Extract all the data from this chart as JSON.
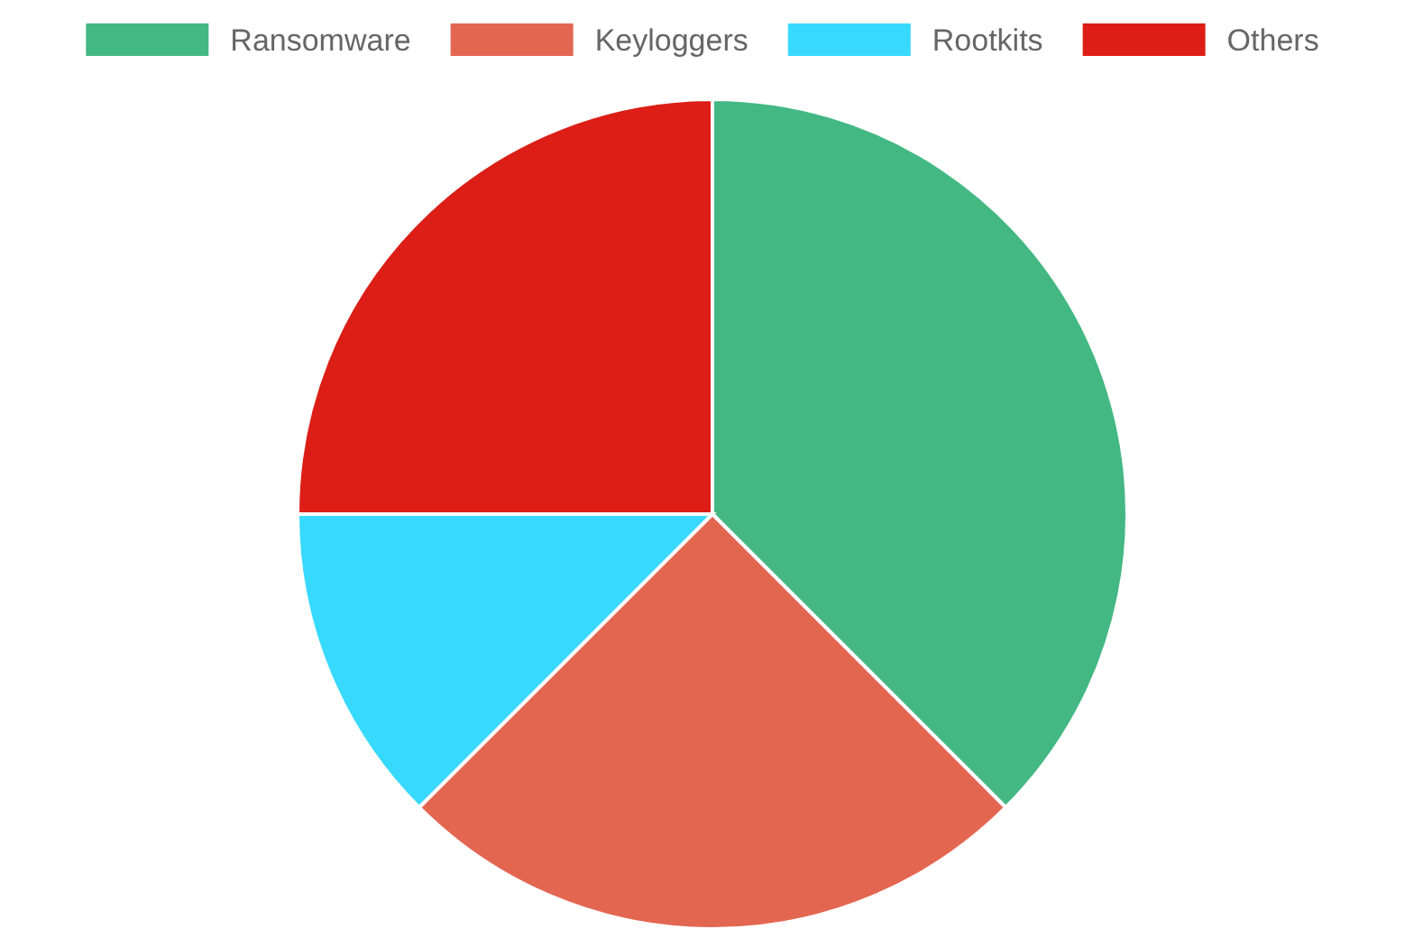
{
  "chart_data": {
    "type": "pie",
    "categories": [
      "Ransomware",
      "Keyloggers",
      "Rootkits",
      "Others"
    ],
    "values": [
      37.5,
      25,
      12.5,
      25
    ],
    "colors": [
      "#43b883",
      "#e36651",
      "#38d9ff",
      "#dc1e16"
    ],
    "legend": "top"
  }
}
